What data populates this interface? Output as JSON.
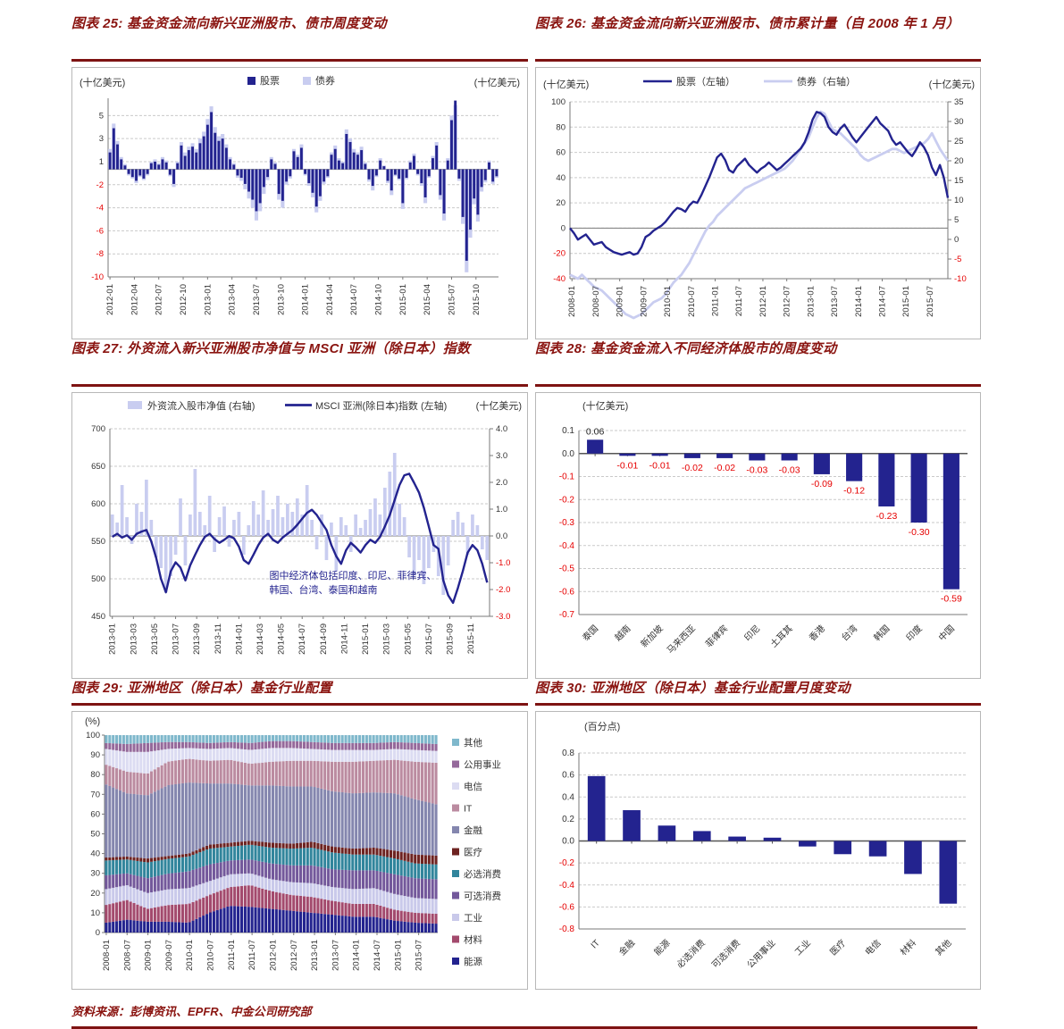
{
  "page": {
    "source_note": "资料来源：彭博资讯、EPFR、中金公司研究部"
  },
  "palette": {
    "navy": "#23238f",
    "light_blue": "#c9cdf0",
    "red": "#e60000",
    "grid": "#c9c9c9",
    "axis": "#7a7a7a",
    "title_red": "#8a1410",
    "stack": {
      "能源": "#23238f",
      "材料": "#a34a6d",
      "工业": "#c9c9ea",
      "可选消费": "#73589b",
      "必选消费": "#31859c",
      "医疗": "#6e2321",
      "金融": "#8486ae",
      "IT": "#bb8ba0",
      "电信": "#dcdcf2",
      "公用事业": "#95699b",
      "其他": "#7fb8cc"
    }
  },
  "chart_data": [
    {
      "id": "c25",
      "type": "bar",
      "title": "图表 25:  基金资金流向新兴亚洲股市、债市周度变动",
      "unit_left": "(十亿美元)",
      "unit_right": "(十亿美元)",
      "legend": [
        "股票",
        "债券"
      ],
      "y_ticks": [
        5,
        3,
        1,
        -2,
        -4,
        -6,
        -8,
        -10
      ],
      "x_labels": [
        "2012-01",
        "2012-04",
        "2012-07",
        "2012-10",
        "2013-01",
        "2013-04",
        "2013-07",
        "2013-10",
        "2014-01",
        "2014-04",
        "2014-07",
        "2014-10",
        "2015-01",
        "2015-04",
        "2015-07",
        "2015-10"
      ],
      "series": [
        {
          "name": "股票",
          "values": [
            1.8,
            3.9,
            2.5,
            1.2,
            0.5,
            -0.6,
            -1.0,
            -1.5,
            -0.8,
            -1.2,
            -0.6,
            0.8,
            1.0,
            0.6,
            1.2,
            0.9,
            -0.7,
            -1.9,
            0.8,
            2.4,
            1.5,
            2.0,
            2.3,
            1.8,
            2.6,
            3.2,
            4.2,
            5.3,
            3.5,
            2.8,
            3.0,
            2.2,
            1.2,
            0.6,
            -0.8,
            -1.1,
            -1.9,
            -2.6,
            -3.3,
            -4.3,
            -3.6,
            -2.2,
            -1.0,
            1.2,
            0.7,
            -2.8,
            -3.4,
            -1.6,
            -0.9,
            1.9,
            1.4,
            2.2,
            -0.6,
            -1.8,
            -2.7,
            -3.9,
            -3.0,
            -1.6,
            -0.9,
            1.6,
            2.1,
            1.1,
            0.8,
            3.4,
            2.7,
            1.8,
            1.6,
            2.0,
            0.7,
            -1.3,
            -2.1,
            -0.8,
            1.1,
            0.4,
            -1.5,
            -2.5,
            -0.7,
            -1.2,
            -3.6,
            -1.1,
            0.9,
            1.5,
            -0.6,
            -1.8,
            -3.1,
            -0.9,
            1.3,
            2.4,
            -2.9,
            -4.5,
            1.1,
            4.6,
            6.3,
            -1.2,
            -4.8,
            -8.6,
            -5.9,
            -3.2,
            -4.6,
            -2.2,
            -1.4,
            0.9,
            -1.6,
            -0.9
          ]
        },
        {
          "name": "债券",
          "values": [
            2.1,
            4.3,
            2.8,
            1.4,
            0.7,
            -0.8,
            -1.2,
            -1.8,
            -1.0,
            -1.4,
            -0.8,
            1.0,
            1.2,
            0.8,
            1.4,
            1.1,
            -0.9,
            -2.2,
            1.0,
            2.7,
            1.8,
            2.3,
            2.6,
            2.1,
            3.0,
            3.6,
            4.7,
            5.8,
            4.0,
            3.2,
            3.4,
            2.5,
            1.4,
            0.8,
            -1.1,
            -1.5,
            -2.4,
            -3.2,
            -4.0,
            -5.1,
            -4.3,
            -2.8,
            -1.4,
            1.4,
            0.9,
            -3.3,
            -4.0,
            -2.0,
            -1.2,
            2.1,
            1.6,
            2.5,
            -0.8,
            -2.1,
            -3.1,
            -4.4,
            -3.4,
            -1.9,
            -1.1,
            1.8,
            2.4,
            1.3,
            1.0,
            3.8,
            3.0,
            2.1,
            1.8,
            2.3,
            0.9,
            -1.6,
            -2.5,
            -1.0,
            1.3,
            0.5,
            -1.8,
            -2.9,
            -0.9,
            -1.4,
            -4.1,
            -1.3,
            1.1,
            1.7,
            -0.8,
            -2.1,
            -3.6,
            -1.1,
            1.5,
            2.7,
            -3.3,
            -5.1,
            1.3,
            5.0,
            5.9,
            -1.5,
            -5.4,
            -9.6,
            -6.6,
            -3.7,
            -5.2,
            -2.6,
            -1.7,
            1.1,
            -1.9,
            -1.1
          ]
        }
      ]
    },
    {
      "id": "c26",
      "type": "line",
      "title": "图表 26:  基金资金流向新兴亚洲股市、债市累计量（自 2008 年 1 月）",
      "unit_left": "(十亿美元)",
      "unit_right": "(十亿美元)",
      "legend": [
        "股票（左轴）",
        "债券（右轴）"
      ],
      "y_ticks_left": [
        100,
        80,
        60,
        40,
        20,
        0,
        -20,
        -40
      ],
      "y_ticks_right": [
        35,
        30,
        25,
        20,
        15,
        10,
        5,
        0,
        -5,
        -10
      ],
      "x_labels": [
        "2008-01",
        "2008-07",
        "2009-01",
        "2009-07",
        "2010-01",
        "2010-07",
        "2011-01",
        "2011-07",
        "2012-01",
        "2012-07",
        "2013-01",
        "2013-07",
        "2014-01",
        "2014-07",
        "2015-01",
        "2015-07"
      ],
      "series": [
        {
          "name": "股票（左轴）",
          "axis": "left",
          "values": [
            0,
            -4,
            -9,
            -7,
            -5,
            -9,
            -13,
            -12,
            -11,
            -15,
            -17,
            -19,
            -20,
            -21,
            -20,
            -19,
            -21,
            -20,
            -15,
            -7,
            -5,
            -2,
            0,
            2,
            5,
            9,
            13,
            16,
            15,
            13,
            18,
            21,
            20,
            26,
            33,
            40,
            48,
            56,
            59,
            54,
            46,
            44,
            49,
            52,
            55,
            50,
            47,
            44,
            47,
            49,
            52,
            49,
            46,
            48,
            51,
            54,
            57,
            60,
            63,
            68,
            76,
            86,
            92,
            91,
            88,
            80,
            76,
            74,
            79,
            82,
            77,
            72,
            68,
            72,
            76,
            80,
            84,
            88,
            83,
            80,
            77,
            70,
            66,
            68,
            64,
            60,
            57,
            62,
            68,
            64,
            58,
            48,
            42,
            50,
            40,
            24
          ]
        },
        {
          "name": "债券（右轴）",
          "axis": "right",
          "values": [
            -9,
            -9.5,
            -10,
            -9,
            -10,
            -11,
            -12,
            -12.5,
            -13,
            -14,
            -15,
            -16,
            -17,
            -18,
            -19,
            -19.5,
            -20,
            -19.5,
            -19,
            -18,
            -17,
            -16,
            -15.5,
            -15,
            -14,
            -12.5,
            -11,
            -10,
            -9,
            -7.5,
            -6,
            -4,
            -2,
            0,
            2,
            3.5,
            4.5,
            6,
            7,
            8,
            9,
            10,
            11,
            12,
            13,
            13.5,
            14,
            14.5,
            15,
            15.5,
            16,
            16.5,
            17,
            17.5,
            18,
            19,
            20,
            21.5,
            23,
            24.5,
            26,
            28.5,
            31,
            32.5,
            32,
            30,
            28,
            27.5,
            27,
            26,
            25,
            24,
            23,
            21.5,
            20.5,
            20,
            20.5,
            21,
            21.5,
            22,
            22.5,
            23,
            23,
            22.5,
            22,
            22.5,
            23,
            23.5,
            24,
            24.5,
            25.5,
            27,
            25,
            23,
            21.5,
            20
          ]
        }
      ]
    },
    {
      "id": "c27",
      "type": "area",
      "title": "图表 27:  外资流入新兴亚洲股市净值与 MSCI 亚洲（除日本）指数",
      "unit_right": "(十亿美元)",
      "legend": [
        "外资流入股市净值 (右轴)",
        "MSCI 亚洲(除日本)指数 (左轴)"
      ],
      "annotation": [
        "图中经济体包括印度、印尼、菲律宾、",
        "韩国、台湾、泰国和越南"
      ],
      "y_ticks_left": [
        700,
        650,
        600,
        550,
        500,
        450
      ],
      "y_ticks_right": [
        4.0,
        3.0,
        2.0,
        1.0,
        0.0,
        -1.0,
        -2.0,
        -3.0
      ],
      "x_labels": [
        "2013-01",
        "2013-03",
        "2013-05",
        "2013-07",
        "2013-09",
        "2013-11",
        "2014-01",
        "2014-03",
        "2014-05",
        "2014-07",
        "2014-09",
        "2014-11",
        "2015-01",
        "2015-03",
        "2015-05",
        "2015-07",
        "2015-09",
        "2015-11"
      ],
      "series": [
        {
          "name": "MSCI 亚洲(除日本)指数 (左轴)",
          "axis": "left",
          "values": [
            556,
            560,
            555,
            558,
            552,
            560,
            563,
            565,
            550,
            528,
            500,
            482,
            510,
            522,
            515,
            498,
            518,
            532,
            545,
            556,
            560,
            553,
            548,
            552,
            557,
            554,
            543,
            525,
            520,
            532,
            545,
            555,
            560,
            552,
            548,
            555,
            560,
            565,
            572,
            580,
            588,
            592,
            585,
            575,
            565,
            545,
            530,
            520,
            538,
            548,
            542,
            535,
            545,
            552,
            548,
            556,
            570,
            585,
            605,
            625,
            638,
            640,
            628,
            615,
            595,
            570,
            545,
            540,
            498,
            478,
            468,
            488,
            510,
            535,
            545,
            538,
            520,
            495
          ]
        },
        {
          "name": "外资流入股市净值 (右轴)",
          "axis": "right",
          "values": [
            0.8,
            0.5,
            1.9,
            0.7,
            -0.3,
            1.2,
            0.9,
            2.1,
            0.6,
            -0.8,
            -1.2,
            -2.1,
            -1.5,
            -0.7,
            1.4,
            -1.1,
            0.8,
            2.5,
            0.9,
            0.4,
            1.5,
            -0.6,
            0.7,
            1.1,
            -0.4,
            0.6,
            0.9,
            -0.7,
            0.4,
            1.3,
            0.8,
            1.7,
            0.6,
            1.0,
            1.5,
            0.7,
            1.2,
            0.9,
            1.4,
            0.8,
            1.9,
            0.6,
            -0.5,
            0.8,
            -0.9,
            0.5,
            -1.3,
            0.7,
            0.4,
            -0.6,
            0.8,
            0.3,
            0.6,
            1.0,
            1.4,
            0.8,
            1.8,
            2.4,
            3.1,
            1.2,
            0.7,
            -0.8,
            -1.4,
            -0.9,
            -1.8,
            -1.2,
            -0.6,
            -1.5,
            -2.2,
            -1.1,
            0.6,
            0.9,
            0.5,
            -0.7,
            0.8,
            0.4,
            -0.5,
            -0.9
          ]
        }
      ]
    },
    {
      "id": "c28",
      "type": "bar",
      "title": "图表 28:  基金资金流入不同经济体股市的周度变动",
      "unit_left": "(十亿美元)",
      "y_ticks": [
        0.1,
        0.0,
        -0.1,
        -0.2,
        -0.3,
        -0.4,
        -0.5,
        -0.6,
        -0.7
      ],
      "categories": [
        "泰国",
        "越南",
        "新加坡",
        "马来西亚",
        "菲律宾",
        "印尼",
        "土耳其",
        "香港",
        "台湾",
        "韩国",
        "印度",
        "中国"
      ],
      "values": [
        0.06,
        -0.01,
        -0.01,
        -0.02,
        -0.02,
        -0.03,
        -0.03,
        -0.09,
        -0.12,
        -0.23,
        -0.3,
        -0.59
      ]
    },
    {
      "id": "c29",
      "type": "bar",
      "title": "图表 29:  亚洲地区（除日本）基金行业配置",
      "unit_left": "(%)",
      "stacked": true,
      "y_ticks": [
        100,
        90,
        80,
        70,
        60,
        50,
        40,
        30,
        20,
        10,
        0
      ],
      "x_labels": [
        "2008-01",
        "2008-07",
        "2009-01",
        "2009-07",
        "2010-01",
        "2010-07",
        "2011-01",
        "2011-07",
        "2012-01",
        "2012-07",
        "2013-01",
        "2013-07",
        "2014-01",
        "2014-07",
        "2015-01",
        "2015-07"
      ],
      "legend_order": [
        "其他",
        "公用事业",
        "电信",
        "IT",
        "金融",
        "医疗",
        "必选消费",
        "可选消费",
        "工业",
        "材料",
        "能源"
      ],
      "n_bars": 96,
      "series": [
        {
          "name": "能源",
          "keyframes": [
            5,
            6.5,
            5.5,
            5.5,
            5,
            10,
            13.5,
            13,
            12,
            11,
            10,
            9,
            8,
            8,
            6,
            5,
            4.5
          ]
        },
        {
          "name": "材料",
          "keyframes": [
            9,
            10,
            6.5,
            8.5,
            9.5,
            9,
            9.5,
            11,
            9,
            8,
            8,
            7,
            6.5,
            6.5,
            5.5,
            5,
            5
          ]
        },
        {
          "name": "工业",
          "keyframes": [
            8,
            7.5,
            8,
            8,
            8,
            7,
            6.5,
            6,
            6,
            6.5,
            7,
            7,
            7.5,
            8,
            8,
            7.5,
            7.5
          ]
        },
        {
          "name": "可选消费",
          "keyframes": [
            7,
            6,
            7.5,
            8,
            8.5,
            8.5,
            7,
            7,
            8,
            8.5,
            9,
            9,
            9.5,
            9,
            10,
            10,
            10
          ]
        },
        {
          "name": "必选消费",
          "keyframes": [
            7.5,
            7,
            8,
            7.5,
            7.5,
            8,
            7,
            7.5,
            8,
            8.5,
            9,
            8.5,
            8,
            8,
            8,
            7.5,
            7.5
          ]
        },
        {
          "name": "医疗",
          "keyframes": [
            1.5,
            1.5,
            2,
            1.5,
            1.5,
            2,
            2,
            2,
            2.5,
            2.5,
            3,
            3,
            3,
            3.5,
            4,
            4.5,
            4.5
          ]
        },
        {
          "name": "金融",
          "keyframes": [
            37,
            32,
            32,
            36,
            36,
            31,
            30,
            28,
            29,
            29,
            28,
            28,
            28,
            28,
            29,
            28,
            26
          ]
        },
        {
          "name": "IT",
          "keyframes": [
            10,
            11,
            11,
            12,
            12,
            11.5,
            12,
            11,
            12,
            13,
            13,
            15,
            16,
            16,
            17,
            19,
            21
          ]
        },
        {
          "name": "电信",
          "keyframes": [
            8,
            10,
            11,
            6.5,
            5.5,
            6,
            6,
            7,
            7,
            6.5,
            6,
            6,
            6,
            5.5,
            5.5,
            6,
            6
          ]
        },
        {
          "name": "公用事业",
          "keyframes": [
            3,
            4,
            4.5,
            3.5,
            3,
            3,
            3,
            3.5,
            3.5,
            3.5,
            3.5,
            3.5,
            3.5,
            3.5,
            3.5,
            3.5,
            3.5
          ]
        },
        {
          "name": "其他",
          "keyframes": [
            4,
            4.5,
            4,
            3.5,
            3.5,
            4,
            3.5,
            4,
            3,
            3,
            3.5,
            4,
            4,
            4,
            3.5,
            4,
            4.5
          ]
        }
      ]
    },
    {
      "id": "c30",
      "type": "bar",
      "title": "图表 30:  亚洲地区（除日本）基金行业配置月度变动",
      "unit_left": "(百分点)",
      "y_ticks": [
        0.8,
        0.6,
        0.4,
        0.2,
        0.0,
        -0.2,
        -0.4,
        -0.6,
        -0.8
      ],
      "categories": [
        "IT",
        "金融",
        "能源",
        "必选消费",
        "可选消费",
        "公用事业",
        "工业",
        "医疗",
        "电信",
        "材料",
        "其他"
      ],
      "values": [
        0.59,
        0.28,
        0.14,
        0.09,
        0.04,
        0.03,
        -0.05,
        -0.12,
        -0.14,
        -0.3,
        -0.57
      ]
    }
  ]
}
